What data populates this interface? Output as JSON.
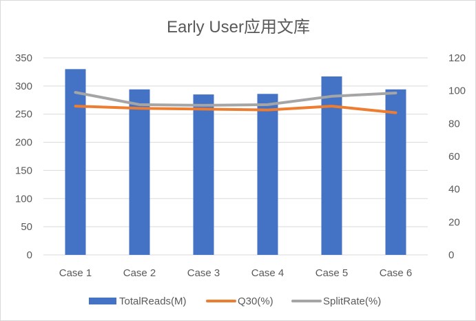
{
  "chart_data": {
    "type": "bar+line",
    "title": "Early User应用文库",
    "categories": [
      "Case 1",
      "Case 2",
      "Case 3",
      "Case 4",
      "Case 5",
      "Case 6"
    ],
    "y_left": {
      "min": 0,
      "max": 350,
      "step": 50,
      "ticks": [
        "0",
        "50",
        "100",
        "150",
        "200",
        "250",
        "300",
        "350"
      ]
    },
    "y_right": {
      "min": 0,
      "max": 120,
      "step": 20,
      "ticks": [
        "0",
        "20",
        "40",
        "60",
        "80",
        "100",
        "120"
      ]
    },
    "grid": true,
    "legend_position": "bottom",
    "series": [
      {
        "name": "TotalReads(M)",
        "type": "bar",
        "axis": "left",
        "color": "#4472C4",
        "values": [
          330,
          294,
          285,
          286,
          317,
          294
        ]
      },
      {
        "name": "Q30(%)",
        "type": "line",
        "axis": "right",
        "color": "#ED7D31",
        "values": [
          90.6,
          89.3,
          88.8,
          88.3,
          90.6,
          86.6
        ]
      },
      {
        "name": "SplitRate(%)",
        "type": "line",
        "axis": "right",
        "color": "#A5A5A5",
        "values": [
          99.0,
          91.5,
          91.1,
          91.5,
          96.6,
          98.6
        ]
      }
    ]
  }
}
